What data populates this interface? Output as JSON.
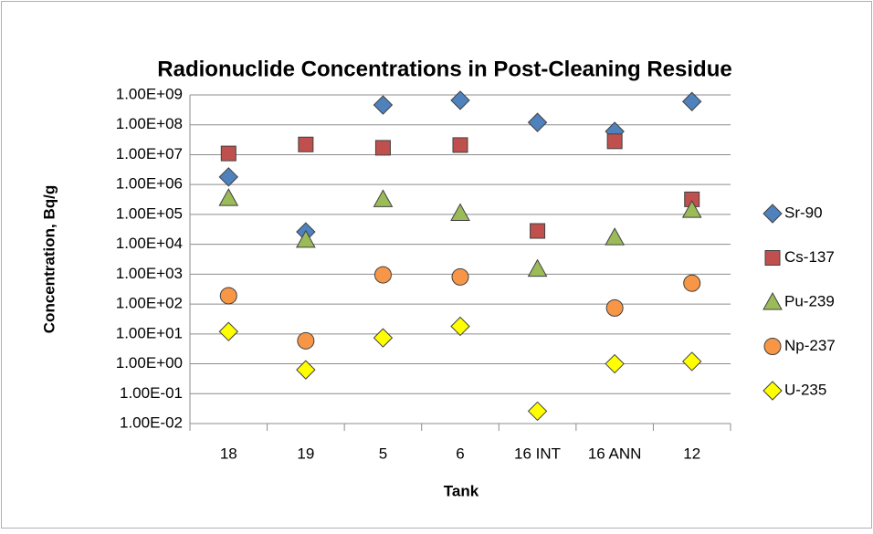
{
  "chart_data": {
    "type": "scatter",
    "title": "Radionuclide Concentrations in Post-Cleaning Residue",
    "x_label": "Tank",
    "y_label": "Concentration, Bq/g",
    "categories": [
      "18",
      "19",
      "5",
      "6",
      "16 INT",
      "16 ANN",
      "12"
    ],
    "yscale": "log",
    "ylim": [
      0.01,
      1000000000
    ],
    "yticks": [
      {
        "value": 0.01,
        "label": "1.00E-02"
      },
      {
        "value": 0.1,
        "label": "1.00E-01"
      },
      {
        "value": 1,
        "label": "1.00E+00"
      },
      {
        "value": 10,
        "label": "1.00E+01"
      },
      {
        "value": 100,
        "label": "1.00E+02"
      },
      {
        "value": 1000,
        "label": "1.00E+03"
      },
      {
        "value": 10000,
        "label": "1.00E+04"
      },
      {
        "value": 100000,
        "label": "1.00E+05"
      },
      {
        "value": 1000000,
        "label": "1.00E+06"
      },
      {
        "value": 10000000,
        "label": "1.00E+07"
      },
      {
        "value": 100000000,
        "label": "1.00E+08"
      },
      {
        "value": 1000000000,
        "label": "1.00E+09"
      }
    ],
    "grid": true,
    "legend": "right",
    "series": [
      {
        "name": "Sr-90",
        "color": "#4f81bd",
        "marker": "diamond",
        "values": [
          1800000,
          26000,
          460000000,
          660000000,
          120000000,
          60000000,
          600000000
        ]
      },
      {
        "name": "Cs-137",
        "color": "#c0504d",
        "marker": "square",
        "values": [
          11000000,
          22000000,
          17000000,
          21000000,
          28000,
          28000000,
          320000
        ]
      },
      {
        "name": "Pu-239",
        "color": "#9bbb59",
        "marker": "triangle",
        "values": [
          350000,
          14000,
          320000,
          110000,
          1500,
          17000,
          140000
        ]
      },
      {
        "name": "Np-237",
        "color": "#f79646",
        "marker": "circle",
        "values": [
          190,
          5.9,
          950,
          810,
          null,
          74,
          500
        ]
      },
      {
        "name": "U-235",
        "color": "#ffff00",
        "marker": "diamond",
        "values": [
          12,
          0.63,
          7.4,
          18,
          0.026,
          1.0,
          1.2
        ]
      }
    ]
  }
}
